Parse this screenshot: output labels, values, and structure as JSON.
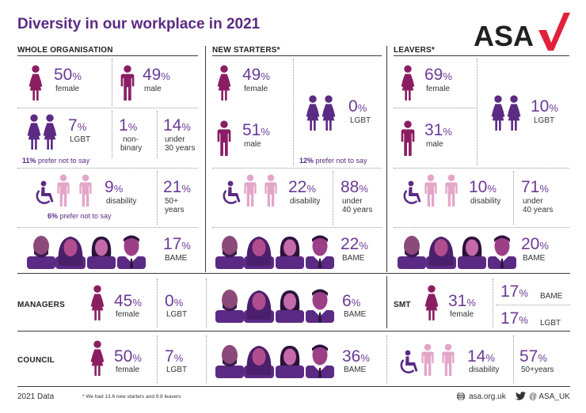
{
  "title": "Diversity in our workplace in 2021",
  "brand": "ASA",
  "colors": {
    "primary": "#5b2a84",
    "accent_red": "#e2203c",
    "dark_female": "#8b1d62",
    "light_pink": "#e3a6c8",
    "purple_text": "#6b3a96"
  },
  "sections": {
    "whole": "WHOLE ORGANISATION",
    "new_starters": "NEW STARTERS*",
    "leavers": "LEAVERS*",
    "managers": "MANAGERS",
    "smt": "SMT",
    "council": "COUNCIL"
  },
  "whole": {
    "female_pct": "50",
    "female_lbl": "female",
    "male_pct": "49",
    "male_lbl": "male",
    "lgbt_pct": "7",
    "lgbt_lbl": "LGBT",
    "nonbinary_pct": "1",
    "nonbinary_lbl1": "non-",
    "nonbinary_lbl2": "binary",
    "under30_pct": "14",
    "under30_lbl1": "under",
    "under30_lbl2": "30 years",
    "lgbt_note_pct": "11%",
    "lgbt_note_txt": " prefer not to say",
    "disability_pct": "9",
    "disability_lbl": "disability",
    "disability_note_pct": "6%",
    "disability_note_txt": " prefer not to say",
    "over50_pct": "21",
    "over50_lbl1": "50+",
    "over50_lbl2": "years",
    "bame_pct": "17",
    "bame_lbl": "BAME"
  },
  "starters": {
    "female_pct": "49",
    "female_lbl": "female",
    "male_pct": "51",
    "male_lbl": "male",
    "lgbt_pct": "0",
    "lgbt_lbl": "LGBT",
    "lgbt_note_pct": "12%",
    "lgbt_note_txt": " prefer not to say",
    "disability_pct": "22",
    "disability_lbl": "disability",
    "under40_pct": "88",
    "under40_lbl1": "under",
    "under40_lbl2": "40 years",
    "bame_pct": "22",
    "bame_lbl": "BAME"
  },
  "leavers": {
    "female_pct": "69",
    "female_lbl": "female",
    "male_pct": "31",
    "male_lbl": "male",
    "lgbt_pct": "10",
    "lgbt_lbl": "LGBT",
    "disability_pct": "10",
    "disability_lbl": "disability",
    "under40_pct": "71",
    "under40_lbl1": "under",
    "under40_lbl2": "40 years",
    "bame_pct": "20",
    "bame_lbl": "BAME"
  },
  "managers": {
    "female_pct": "45",
    "female_lbl": "female",
    "lgbt_pct": "0",
    "lgbt_lbl": "LGBT",
    "bame_pct": "6",
    "bame_lbl": "BAME"
  },
  "smt": {
    "female_pct": "31",
    "female_lbl": "female",
    "bame_pct": "17",
    "bame_lbl": "BAME",
    "lgbt_pct": "17",
    "lgbt_lbl": "LGBT"
  },
  "council": {
    "female_pct": "50",
    "female_lbl": "female",
    "lgbt_pct": "7",
    "lgbt_lbl": "LGBT",
    "bame_pct": "36",
    "bame_lbl": "BAME",
    "disability_pct": "14",
    "disability_lbl": "disability",
    "over50_pct": "57",
    "over50_lbl": "50+years"
  },
  "pct_sign": "%",
  "footer": {
    "data_year": "2021 Data",
    "footnote": "* We had 13.6 new starters and 9.8 leavers",
    "website": "asa.org.uk",
    "twitter": "@ ASA_UK"
  },
  "icons": [
    "female-icon",
    "male-icon",
    "lgbt-pair-icon",
    "wheelchair-icon",
    "bame-group-icon",
    "globe-icon",
    "twitter-icon"
  ]
}
